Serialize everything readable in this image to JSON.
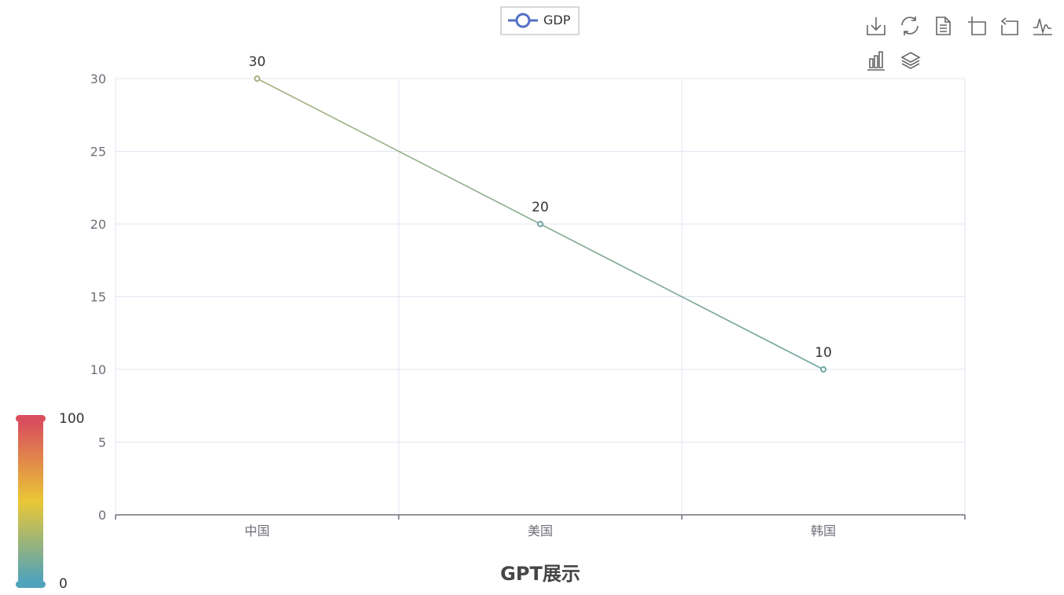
{
  "chart_data": {
    "type": "line",
    "title": "GPT展示",
    "categories": [
      "中国",
      "美国",
      "韩国"
    ],
    "series": [
      {
        "name": "GDP",
        "values": [
          30,
          20,
          10
        ]
      }
    ],
    "ylim": [
      0,
      30
    ],
    "yticks": [
      0,
      5,
      10,
      15,
      20,
      25,
      30
    ],
    "grid": true,
    "legend_position": "top-center",
    "visual_map": {
      "min_label": "100",
      "max_label": "0",
      "min": 0,
      "max": 100,
      "colors": [
        "#d94e5d",
        "#eac736",
        "#50a3ba"
      ]
    },
    "colors": {
      "legend_line": "#5470c6",
      "axis": "#6e7079",
      "grid": "#e0e6f1",
      "line_start": "#a3b07e",
      "line_end": "#6fa7a1"
    }
  },
  "toolbox": {
    "icons": [
      "download-icon",
      "refresh-icon",
      "data-view-icon",
      "zoom-icon",
      "zoom-reset-icon",
      "line-switch-icon",
      "bar-switch-icon",
      "stack-switch-icon"
    ]
  }
}
